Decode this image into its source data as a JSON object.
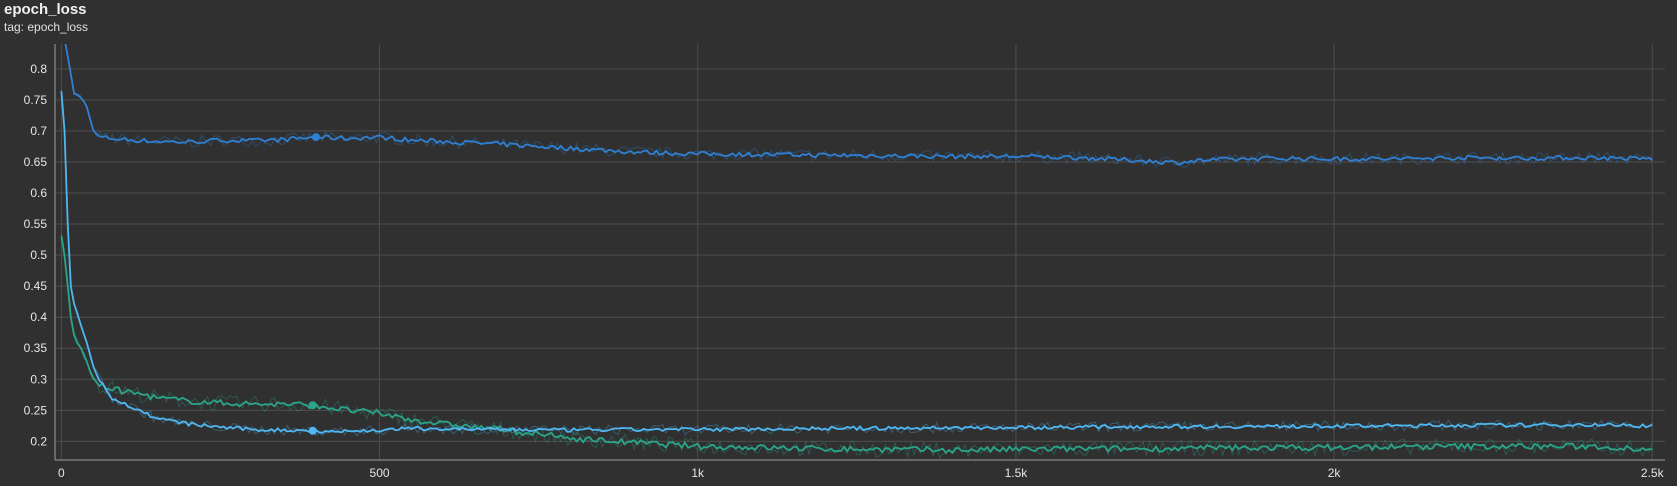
{
  "card": {
    "title": "epoch_loss",
    "tag": "tag: epoch_loss"
  },
  "colors": {
    "background": "#303030",
    "grid": "#4e4e4e",
    "axis": "#9e9e9e",
    "series_dark_blue": "#2f80d3",
    "series_light_blue": "#4fb8f2",
    "series_green": "#2aa58a"
  },
  "chart_data": {
    "type": "line",
    "title": "epoch_loss",
    "subtitle": "tag: epoch_loss",
    "xlabel": "",
    "ylabel": "",
    "xlim": [
      -10,
      2520
    ],
    "ylim": [
      0.17,
      0.84
    ],
    "grid": true,
    "x_ticks": [
      0,
      500,
      1000,
      1500,
      2000,
      2500
    ],
    "x_tick_labels": [
      "0",
      "500",
      "1k",
      "1.5k",
      "2k",
      "2.5k"
    ],
    "y_ticks": [
      0.2,
      0.25,
      0.3,
      0.35,
      0.4,
      0.45,
      0.5,
      0.55,
      0.6,
      0.65,
      0.7,
      0.75,
      0.8
    ],
    "y_tick_labels": [
      "0.2",
      "0.25",
      "0.3",
      "0.35",
      "0.4",
      "0.45",
      "0.5",
      "0.55",
      "0.6",
      "0.65",
      "0.7",
      "0.75",
      "0.8"
    ],
    "series": [
      {
        "color": "#2f80d3",
        "x": [
          0,
          5,
          10,
          20,
          30,
          40,
          50,
          60,
          80,
          100,
          150,
          200,
          250,
          300,
          350,
          400,
          450,
          500,
          550,
          600,
          700,
          800,
          900,
          1000,
          1100,
          1200,
          1300,
          1400,
          1500,
          1600,
          1700,
          1750,
          1800,
          1900,
          2000,
          2100,
          2200,
          2300,
          2400,
          2500
        ],
        "y": [
          0.86,
          0.85,
          0.82,
          0.76,
          0.755,
          0.74,
          0.7,
          0.69,
          0.688,
          0.686,
          0.683,
          0.682,
          0.685,
          0.684,
          0.686,
          0.69,
          0.688,
          0.69,
          0.685,
          0.683,
          0.678,
          0.672,
          0.666,
          0.663,
          0.662,
          0.661,
          0.66,
          0.659,
          0.659,
          0.657,
          0.652,
          0.649,
          0.653,
          0.656,
          0.655,
          0.655,
          0.657,
          0.656,
          0.657,
          0.655
        ],
        "noise": 0.006,
        "marker_x": 400
      },
      {
        "color": "#2aa58a",
        "x": [
          0,
          5,
          10,
          15,
          20,
          30,
          40,
          50,
          60,
          80,
          100,
          130,
          150,
          200,
          250,
          300,
          350,
          400,
          450,
          500,
          550,
          600,
          700,
          800,
          900,
          1000,
          1100,
          1200,
          1300,
          1400,
          1500,
          1600,
          1700,
          1800,
          1900,
          2000,
          2100,
          2200,
          2300,
          2400,
          2500
        ],
        "y": [
          0.53,
          0.5,
          0.45,
          0.4,
          0.37,
          0.35,
          0.33,
          0.3,
          0.29,
          0.285,
          0.28,
          0.275,
          0.27,
          0.265,
          0.262,
          0.26,
          0.26,
          0.258,
          0.25,
          0.245,
          0.235,
          0.228,
          0.218,
          0.205,
          0.198,
          0.192,
          0.19,
          0.188,
          0.187,
          0.186,
          0.187,
          0.188,
          0.188,
          0.189,
          0.19,
          0.19,
          0.191,
          0.192,
          0.192,
          0.192,
          0.188
        ],
        "noise": 0.008,
        "marker_x": 395
      },
      {
        "color": "#4fb8f2",
        "x": [
          0,
          5,
          10,
          15,
          20,
          30,
          40,
          50,
          60,
          80,
          100,
          150,
          200,
          250,
          300,
          350,
          400,
          450,
          500,
          550,
          600,
          700,
          800,
          900,
          1000,
          1100,
          1200,
          1300,
          1400,
          1500,
          1600,
          1700,
          1800,
          1900,
          2000,
          2100,
          2200,
          2300,
          2400,
          2500
        ],
        "y": [
          0.765,
          0.7,
          0.55,
          0.45,
          0.42,
          0.39,
          0.36,
          0.32,
          0.3,
          0.27,
          0.26,
          0.237,
          0.228,
          0.223,
          0.219,
          0.218,
          0.217,
          0.216,
          0.218,
          0.221,
          0.22,
          0.219,
          0.218,
          0.219,
          0.219,
          0.22,
          0.221,
          0.221,
          0.222,
          0.222,
          0.223,
          0.224,
          0.224,
          0.224,
          0.225,
          0.225,
          0.226,
          0.226,
          0.227,
          0.225
        ],
        "noise": 0.005,
        "marker_x": 395
      }
    ]
  }
}
